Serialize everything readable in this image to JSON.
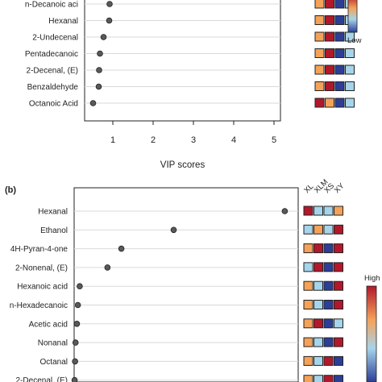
{
  "colors": {
    "high": "#b2182b",
    "mid_high": "#f4a259",
    "mid_low": "#a6d4ea",
    "low": "#2c3e96",
    "point": "#595959",
    "guide": "#d9d9d9",
    "axis": "#222222"
  },
  "chart_data": [
    {
      "panel": "a",
      "type": "scatter",
      "xlabel": "VIP scores",
      "xlim": [
        0.3,
        5.0
      ],
      "xticks": [
        1,
        2,
        3,
        4,
        5
      ],
      "categories": [
        "n-Decanoic aci",
        "Hexanal",
        "2-Undecenal",
        "Pentadecanoic",
        "2-Decenal, (E)",
        "Benzaldehyde",
        "Octanoic Acid"
      ],
      "values": [
        0.92,
        0.91,
        0.77,
        0.68,
        0.66,
        0.65,
        0.51
      ],
      "heatmap_columns": [],
      "heatmap": [
        [
          "mid_high",
          "high",
          "low",
          "mid_low"
        ],
        [
          "mid_high",
          "high",
          "low",
          "mid_low"
        ],
        [
          "mid_high",
          "high",
          "low",
          "mid_low"
        ],
        [
          "mid_high",
          "high",
          "low",
          "mid_low"
        ],
        [
          "mid_high",
          "high",
          "low",
          "mid_low"
        ],
        [
          "mid_high",
          "high",
          "low",
          "mid_low"
        ],
        [
          "high",
          "mid_high",
          "low",
          "mid_low"
        ]
      ],
      "legend": {
        "high_label": "",
        "low_label": "Low"
      }
    },
    {
      "panel": "b",
      "panel_label": "(b)",
      "type": "scatter",
      "xlim": [
        0.3,
        5.0
      ],
      "categories": [
        "Hexanal",
        "Ethanol",
        "4H-Pyran-4-one",
        "2-Nonenal, (E)",
        "Hexanoic acid",
        "n-Hexadecanoic",
        "Acetic acid",
        "Nonanal",
        "Octanal",
        "2-Decenal, (E)"
      ],
      "values": [
        4.85,
        2.45,
        1.32,
        1.02,
        0.42,
        0.38,
        0.36,
        0.33,
        0.32,
        0.31
      ],
      "heatmap_columns": [
        "XL",
        "XLM",
        "XS",
        "XY"
      ],
      "heatmap": [
        [
          "high",
          "mid_low",
          "mid_low",
          "mid_high"
        ],
        [
          "mid_low",
          "mid_high",
          "mid_low",
          "high"
        ],
        [
          "mid_high",
          "high",
          "low",
          "high"
        ],
        [
          "mid_low",
          "high",
          "low",
          "high"
        ],
        [
          "mid_high",
          "mid_low",
          "low",
          "high"
        ],
        [
          "mid_high",
          "mid_low",
          "low",
          "high"
        ],
        [
          "mid_high",
          "high",
          "low",
          "mid_low"
        ],
        [
          "mid_high",
          "mid_low",
          "low",
          "high"
        ],
        [
          "mid_high",
          "mid_low",
          "high",
          "low"
        ],
        [
          "mid_high",
          "mid_low",
          "high",
          "low"
        ]
      ],
      "legend": {
        "high_label": "High",
        "low_label": ""
      }
    }
  ]
}
